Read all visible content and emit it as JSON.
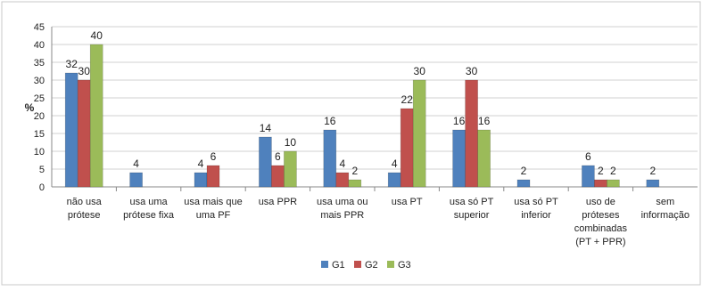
{
  "chart_data": {
    "type": "bar",
    "ylabel": "%",
    "ylim": [
      0,
      45
    ],
    "ytick_step": 5,
    "grid": true,
    "legend_position": "bottom",
    "categories": [
      [
        "não usa",
        "prótese"
      ],
      [
        "usa uma",
        "prótese fixa"
      ],
      [
        "usa mais que",
        "uma PF"
      ],
      [
        "usa PPR"
      ],
      [
        "usa uma ou",
        "mais PPR"
      ],
      [
        "usa PT"
      ],
      [
        "usa só PT",
        "superior"
      ],
      [
        "usa só PT",
        "inferior"
      ],
      [
        "uso de",
        "próteses",
        "combinadas",
        "(PT + PPR)"
      ],
      [
        "sem",
        "informação"
      ]
    ],
    "series": [
      {
        "name": "G1",
        "color": "#4F81BD",
        "values": [
          32,
          4,
          4,
          14,
          16,
          4,
          16,
          2,
          6,
          2
        ]
      },
      {
        "name": "G2",
        "color": "#C0504D",
        "values": [
          30,
          null,
          6,
          6,
          4,
          22,
          30,
          null,
          2,
          null
        ]
      },
      {
        "name": "G3",
        "color": "#9BBB59",
        "values": [
          40,
          null,
          null,
          10,
          2,
          30,
          16,
          null,
          2,
          null
        ]
      }
    ]
  }
}
